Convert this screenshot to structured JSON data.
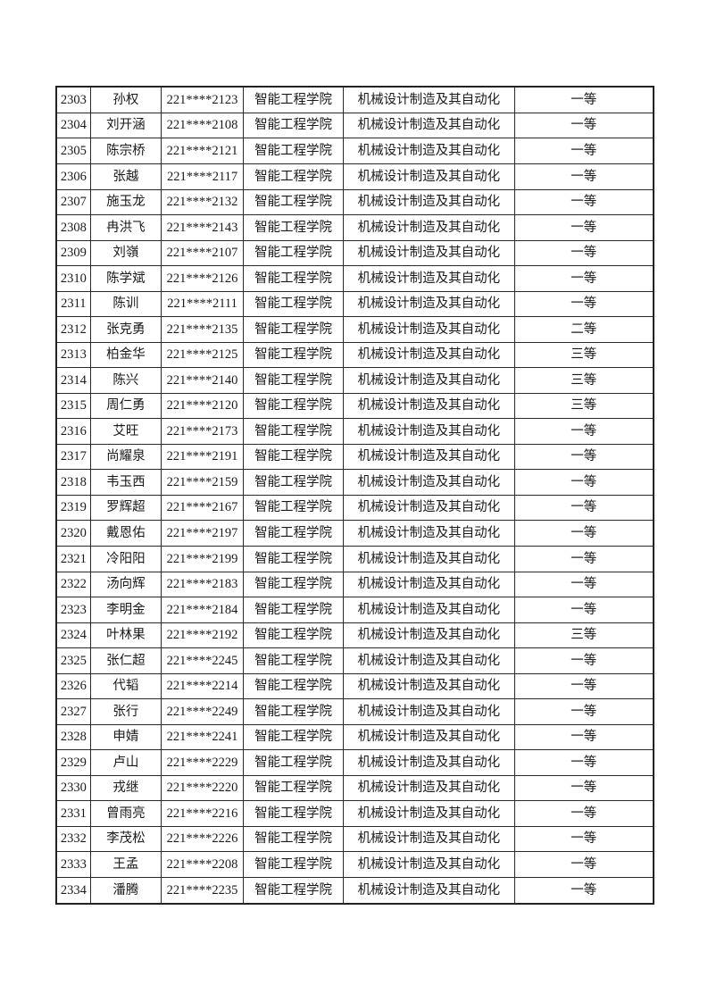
{
  "document": {
    "background": "#ffffff",
    "border_color": "#222222",
    "text_color": "#1a1a1a"
  },
  "table": {
    "column_keys": [
      "index",
      "name",
      "student_id",
      "college",
      "major",
      "award"
    ],
    "rows": [
      {
        "index": "2303",
        "name": "孙权",
        "student_id": "221****2123",
        "college": "智能工程学院",
        "major": "机械设计制造及其自动化",
        "award": "一等"
      },
      {
        "index": "2304",
        "name": "刘开涵",
        "student_id": "221****2108",
        "college": "智能工程学院",
        "major": "机械设计制造及其自动化",
        "award": "一等"
      },
      {
        "index": "2305",
        "name": "陈宗桥",
        "student_id": "221****2121",
        "college": "智能工程学院",
        "major": "机械设计制造及其自动化",
        "award": "一等"
      },
      {
        "index": "2306",
        "name": "张越",
        "student_id": "221****2117",
        "college": "智能工程学院",
        "major": "机械设计制造及其自动化",
        "award": "一等"
      },
      {
        "index": "2307",
        "name": "施玉龙",
        "student_id": "221****2132",
        "college": "智能工程学院",
        "major": "机械设计制造及其自动化",
        "award": "一等"
      },
      {
        "index": "2308",
        "name": "冉洪飞",
        "student_id": "221****2143",
        "college": "智能工程学院",
        "major": "机械设计制造及其自动化",
        "award": "一等"
      },
      {
        "index": "2309",
        "name": "刘嶺",
        "student_id": "221****2107",
        "college": "智能工程学院",
        "major": "机械设计制造及其自动化",
        "award": "一等"
      },
      {
        "index": "2310",
        "name": "陈学斌",
        "student_id": "221****2126",
        "college": "智能工程学院",
        "major": "机械设计制造及其自动化",
        "award": "一等"
      },
      {
        "index": "2311",
        "name": "陈训",
        "student_id": "221****2111",
        "college": "智能工程学院",
        "major": "机械设计制造及其自动化",
        "award": "一等"
      },
      {
        "index": "2312",
        "name": "张克勇",
        "student_id": "221****2135",
        "college": "智能工程学院",
        "major": "机械设计制造及其自动化",
        "award": "二等"
      },
      {
        "index": "2313",
        "name": "柏金华",
        "student_id": "221****2125",
        "college": "智能工程学院",
        "major": "机械设计制造及其自动化",
        "award": "三等"
      },
      {
        "index": "2314",
        "name": "陈兴",
        "student_id": "221****2140",
        "college": "智能工程学院",
        "major": "机械设计制造及其自动化",
        "award": "三等"
      },
      {
        "index": "2315",
        "name": "周仁勇",
        "student_id": "221****2120",
        "college": "智能工程学院",
        "major": "机械设计制造及其自动化",
        "award": "三等"
      },
      {
        "index": "2316",
        "name": "艾旺",
        "student_id": "221****2173",
        "college": "智能工程学院",
        "major": "机械设计制造及其自动化",
        "award": "一等"
      },
      {
        "index": "2317",
        "name": "尚耀泉",
        "student_id": "221****2191",
        "college": "智能工程学院",
        "major": "机械设计制造及其自动化",
        "award": "一等"
      },
      {
        "index": "2318",
        "name": "韦玉西",
        "student_id": "221****2159",
        "college": "智能工程学院",
        "major": "机械设计制造及其自动化",
        "award": "一等"
      },
      {
        "index": "2319",
        "name": "罗辉超",
        "student_id": "221****2167",
        "college": "智能工程学院",
        "major": "机械设计制造及其自动化",
        "award": "一等"
      },
      {
        "index": "2320",
        "name": "戴恩佑",
        "student_id": "221****2197",
        "college": "智能工程学院",
        "major": "机械设计制造及其自动化",
        "award": "一等"
      },
      {
        "index": "2321",
        "name": "冷阳阳",
        "student_id": "221****2199",
        "college": "智能工程学院",
        "major": "机械设计制造及其自动化",
        "award": "一等"
      },
      {
        "index": "2322",
        "name": "汤向辉",
        "student_id": "221****2183",
        "college": "智能工程学院",
        "major": "机械设计制造及其自动化",
        "award": "一等"
      },
      {
        "index": "2323",
        "name": "李明金",
        "student_id": "221****2184",
        "college": "智能工程学院",
        "major": "机械设计制造及其自动化",
        "award": "一等"
      },
      {
        "index": "2324",
        "name": "叶林果",
        "student_id": "221****2192",
        "college": "智能工程学院",
        "major": "机械设计制造及其自动化",
        "award": "三等"
      },
      {
        "index": "2325",
        "name": "张仁超",
        "student_id": "221****2245",
        "college": "智能工程学院",
        "major": "机械设计制造及其自动化",
        "award": "一等"
      },
      {
        "index": "2326",
        "name": "代韬",
        "student_id": "221****2214",
        "college": "智能工程学院",
        "major": "机械设计制造及其自动化",
        "award": "一等"
      },
      {
        "index": "2327",
        "name": "张行",
        "student_id": "221****2249",
        "college": "智能工程学院",
        "major": "机械设计制造及其自动化",
        "award": "一等"
      },
      {
        "index": "2328",
        "name": "申婧",
        "student_id": "221****2241",
        "college": "智能工程学院",
        "major": "机械设计制造及其自动化",
        "award": "一等"
      },
      {
        "index": "2329",
        "name": "卢山",
        "student_id": "221****2229",
        "college": "智能工程学院",
        "major": "机械设计制造及其自动化",
        "award": "一等"
      },
      {
        "index": "2330",
        "name": "戎继",
        "student_id": "221****2220",
        "college": "智能工程学院",
        "major": "机械设计制造及其自动化",
        "award": "一等"
      },
      {
        "index": "2331",
        "name": "曾雨亮",
        "student_id": "221****2216",
        "college": "智能工程学院",
        "major": "机械设计制造及其自动化",
        "award": "一等"
      },
      {
        "index": "2332",
        "name": "李茂松",
        "student_id": "221****2226",
        "college": "智能工程学院",
        "major": "机械设计制造及其自动化",
        "award": "一等"
      },
      {
        "index": "2333",
        "name": "王孟",
        "student_id": "221****2208",
        "college": "智能工程学院",
        "major": "机械设计制造及其自动化",
        "award": "一等"
      },
      {
        "index": "2334",
        "name": "潘腾",
        "student_id": "221****2235",
        "college": "智能工程学院",
        "major": "机械设计制造及其自动化",
        "award": "一等"
      }
    ]
  }
}
